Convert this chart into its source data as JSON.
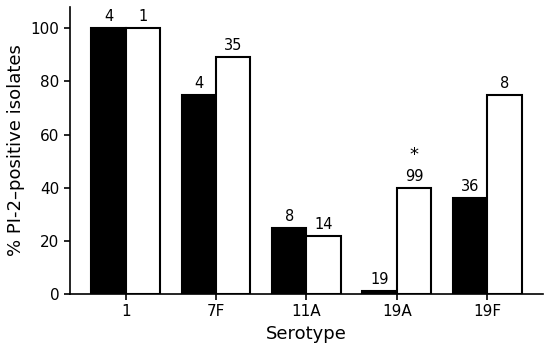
{
  "serotypes": [
    "1",
    "7F",
    "11A",
    "19A",
    "19F"
  ],
  "values_1999": [
    100,
    75,
    25,
    1,
    36
  ],
  "values_2006": [
    100,
    89,
    22,
    40,
    75
  ],
  "labels_1999": [
    "4",
    "4",
    "8",
    "19",
    "36"
  ],
  "labels_2006": [
    "1",
    "35",
    "14",
    "99",
    "8"
  ],
  "star_serotype": "19A",
  "bar_width": 0.38,
  "color_1999": "#000000",
  "color_2006": "#ffffff",
  "edgecolor": "#000000",
  "ylabel": "% PI-2–positive isolates",
  "xlabel": "Serotype",
  "ylim": [
    0,
    108
  ],
  "yticks": [
    0,
    20,
    40,
    60,
    80,
    100
  ],
  "axis_fontsize": 13,
  "tick_fontsize": 11,
  "anno_fontsize": 10.5,
  "star_fontsize": 13,
  "linewidth": 1.5
}
